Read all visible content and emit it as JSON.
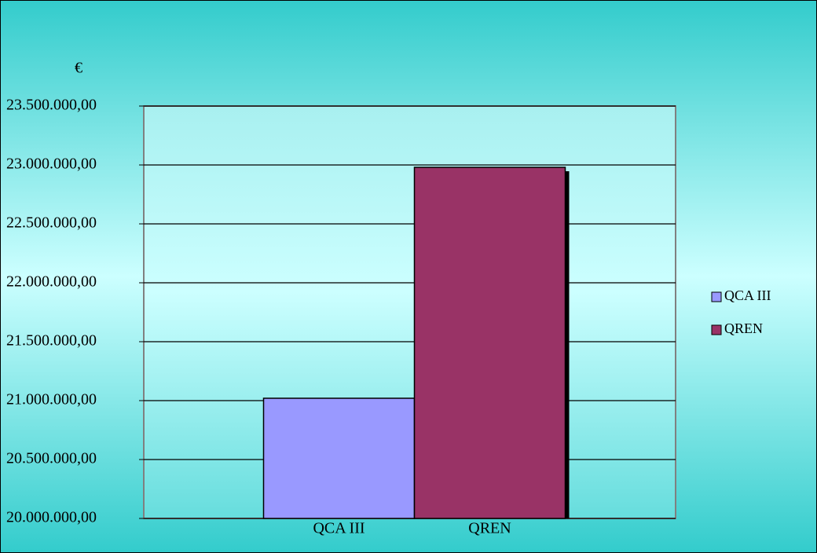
{
  "chart_data": {
    "type": "bar",
    "y_label": "€",
    "categories": [
      "QCA III",
      "QREN"
    ],
    "values": [
      21020000,
      22980000
    ],
    "colors": [
      "#9999ff",
      "#993366"
    ],
    "ylim": [
      20000000,
      23500000
    ],
    "yticks": [
      {
        "value": 20000000,
        "label": "20.000.000,00"
      },
      {
        "value": 20500000,
        "label": "20.500.000,00"
      },
      {
        "value": 21000000,
        "label": "21.000.000,00"
      },
      {
        "value": 21500000,
        "label": "21.500.000,00"
      },
      {
        "value": 22000000,
        "label": "22.000.000,00"
      },
      {
        "value": 22500000,
        "label": "22.500.000,00"
      },
      {
        "value": 23000000,
        "label": "23.000.000,00"
      },
      {
        "value": 23500000,
        "label": "23.500.000,00"
      }
    ],
    "grid": true,
    "legend": "right"
  }
}
